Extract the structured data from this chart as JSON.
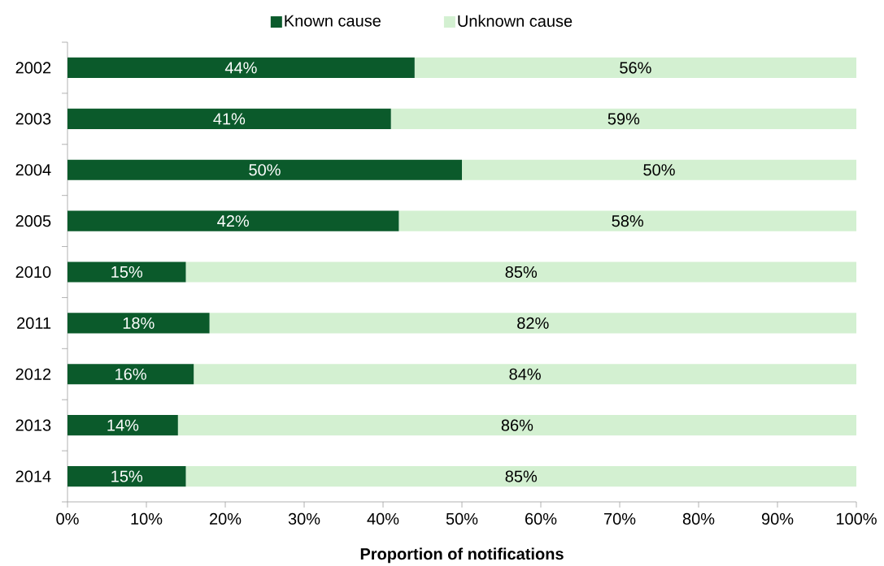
{
  "chart_data": {
    "type": "bar",
    "orientation": "horizontal",
    "stacked": true,
    "xlabel": "Proportion of notifications",
    "categories": [
      "2002",
      "2003",
      "2004",
      "2005",
      "2010",
      "2011",
      "2012",
      "2013",
      "2014"
    ],
    "series": [
      {
        "name": "Known cause",
        "color": "#0b5a2b",
        "values": [
          44,
          41,
          50,
          42,
          15,
          18,
          16,
          14,
          15
        ],
        "value_labels": [
          "44%",
          "41%",
          "50%",
          "42%",
          "15%",
          "18%",
          "16%",
          "14%",
          "15%"
        ]
      },
      {
        "name": "Unknown cause",
        "color": "#d3f0d1",
        "values": [
          56,
          59,
          50,
          58,
          85,
          82,
          84,
          86,
          85
        ],
        "value_labels": [
          "56%",
          "59%",
          "50%",
          "58%",
          "85%",
          "82%",
          "84%",
          "86%",
          "85%"
        ]
      }
    ],
    "xlim": [
      0,
      100
    ],
    "xticks": [
      {
        "value": 0,
        "label": "0%"
      },
      {
        "value": 10,
        "label": "10%"
      },
      {
        "value": 20,
        "label": "20%"
      },
      {
        "value": 30,
        "label": "30%"
      },
      {
        "value": 40,
        "label": "40%"
      },
      {
        "value": 50,
        "label": "50%"
      },
      {
        "value": 60,
        "label": "60%"
      },
      {
        "value": 70,
        "label": "70%"
      },
      {
        "value": 80,
        "label": "80%"
      },
      {
        "value": 90,
        "label": "90%"
      },
      {
        "value": 100,
        "label": "100%"
      }
    ],
    "legend": "top"
  }
}
